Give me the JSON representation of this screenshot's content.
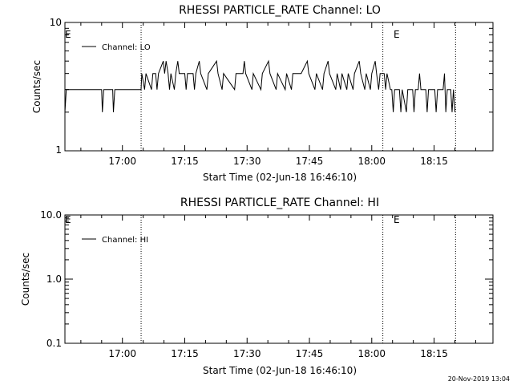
{
  "footer": {
    "timestamp": "20-Nov-2019 13:04"
  },
  "chart_data": [
    {
      "type": "line",
      "title": "RHESSI PARTICLE_RATE Channel: LO",
      "xlabel": "Start Time (02-Jun-18 16:46:10)",
      "ylabel": "Counts/sec",
      "yscale": "log",
      "ylim": [
        1,
        10
      ],
      "yticks": [
        1,
        10
      ],
      "ytick_labels": [
        "1",
        "10"
      ],
      "xlim": [
        "16:46:10",
        "18:29:10"
      ],
      "xticks": [
        "17:00",
        "17:15",
        "17:30",
        "17:45",
        "18:00",
        "18:15"
      ],
      "legend": {
        "label": "Channel: LO",
        "position": "top-left"
      },
      "event_lines": [
        {
          "x": "17:04:30",
          "label": ""
        },
        {
          "x": "18:02:40",
          "label": "E"
        },
        {
          "x": "18:20:10",
          "label": ""
        }
      ],
      "corner_label": "E",
      "series": [
        {
          "name": "Channel: LO",
          "points": [
            [
              "16:46:10",
              2
            ],
            [
              "16:46:30",
              3
            ],
            [
              "16:55:00",
              3
            ],
            [
              "16:55:10",
              2
            ],
            [
              "16:55:30",
              3
            ],
            [
              "16:57:40",
              3
            ],
            [
              "16:57:50",
              2
            ],
            [
              "16:58:10",
              3
            ],
            [
              "17:04:30",
              3
            ],
            [
              "17:04:40",
              4
            ],
            [
              "17:05:20",
              3
            ],
            [
              "17:05:40",
              4
            ],
            [
              "17:07:00",
              3
            ],
            [
              "17:07:20",
              4
            ],
            [
              "17:08:00",
              4
            ],
            [
              "17:08:20",
              3
            ],
            [
              "17:08:40",
              4
            ],
            [
              "17:09:50",
              5
            ],
            [
              "17:10:10",
              4
            ],
            [
              "17:10:30",
              5
            ],
            [
              "17:11:00",
              4
            ],
            [
              "17:11:20",
              3
            ],
            [
              "17:11:40",
              4
            ],
            [
              "17:12:30",
              3
            ],
            [
              "17:12:50",
              4
            ],
            [
              "17:13:20",
              5
            ],
            [
              "17:13:40",
              4
            ],
            [
              "17:15:00",
              4
            ],
            [
              "17:15:20",
              3
            ],
            [
              "17:15:40",
              4
            ],
            [
              "17:17:00",
              4
            ],
            [
              "17:17:20",
              3
            ],
            [
              "17:17:40",
              4
            ],
            [
              "17:18:30",
              5
            ],
            [
              "17:18:50",
              4
            ],
            [
              "17:20:20",
              3
            ],
            [
              "17:20:40",
              4
            ],
            [
              "17:22:40",
              5
            ],
            [
              "17:23:00",
              4
            ],
            [
              "17:24:00",
              3
            ],
            [
              "17:24:20",
              4
            ],
            [
              "17:27:00",
              3
            ],
            [
              "17:27:20",
              4
            ],
            [
              "17:29:00",
              4
            ],
            [
              "17:29:20",
              5
            ],
            [
              "17:29:40",
              4
            ],
            [
              "17:31:10",
              3
            ],
            [
              "17:31:30",
              4
            ],
            [
              "17:33:20",
              3
            ],
            [
              "17:33:40",
              4
            ],
            [
              "17:35:10",
              5
            ],
            [
              "17:35:30",
              4
            ],
            [
              "17:37:00",
              3
            ],
            [
              "17:37:20",
              4
            ],
            [
              "17:39:10",
              3
            ],
            [
              "17:39:30",
              4
            ],
            [
              "17:40:40",
              3
            ],
            [
              "17:41:00",
              4
            ],
            [
              "17:43:00",
              4
            ],
            [
              "17:44:30",
              5
            ],
            [
              "17:44:50",
              4
            ],
            [
              "17:46:20",
              3
            ],
            [
              "17:46:40",
              4
            ],
            [
              "17:48:10",
              3
            ],
            [
              "17:48:30",
              4
            ],
            [
              "17:49:30",
              5
            ],
            [
              "17:49:50",
              4
            ],
            [
              "17:51:20",
              3
            ],
            [
              "17:51:40",
              4
            ],
            [
              "17:52:30",
              3
            ],
            [
              "17:52:50",
              4
            ],
            [
              "17:54:00",
              3
            ],
            [
              "17:54:20",
              4
            ],
            [
              "17:55:30",
              3
            ],
            [
              "17:55:50",
              4
            ],
            [
              "17:57:00",
              5
            ],
            [
              "17:57:20",
              4
            ],
            [
              "17:58:20",
              3
            ],
            [
              "17:58:40",
              4
            ],
            [
              "17:59:40",
              3
            ],
            [
              "18:00:00",
              4
            ],
            [
              "18:00:50",
              5
            ],
            [
              "18:01:10",
              4
            ],
            [
              "18:01:40",
              3
            ],
            [
              "18:02:00",
              4
            ],
            [
              "18:03:00",
              4
            ],
            [
              "18:03:20",
              3
            ],
            [
              "18:03:40",
              4
            ],
            [
              "18:04:30",
              3
            ],
            [
              "18:04:50",
              3
            ],
            [
              "18:05:10",
              2
            ],
            [
              "18:05:30",
              3
            ],
            [
              "18:06:40",
              3
            ],
            [
              "18:07:00",
              2
            ],
            [
              "18:07:20",
              3
            ],
            [
              "18:08:20",
              2
            ],
            [
              "18:08:40",
              3
            ],
            [
              "18:09:50",
              3
            ],
            [
              "18:10:10",
              2
            ],
            [
              "18:10:30",
              3
            ],
            [
              "18:11:10",
              3
            ],
            [
              "18:11:30",
              4
            ],
            [
              "18:11:50",
              3
            ],
            [
              "18:13:00",
              3
            ],
            [
              "18:13:20",
              2
            ],
            [
              "18:13:40",
              3
            ],
            [
              "18:15:10",
              3
            ],
            [
              "18:15:30",
              2
            ],
            [
              "18:15:50",
              3
            ],
            [
              "18:17:10",
              3
            ],
            [
              "18:17:30",
              4
            ],
            [
              "18:17:50",
              2
            ],
            [
              "18:18:10",
              3
            ],
            [
              "18:19:00",
              3
            ],
            [
              "18:19:20",
              2
            ],
            [
              "18:19:40",
              3
            ],
            [
              "18:20:00",
              2
            ]
          ]
        }
      ]
    },
    {
      "type": "line",
      "title": "RHESSI PARTICLE_RATE Channel: HI",
      "xlabel": "Start Time (02-Jun-18 16:46:10)",
      "ylabel": "Counts/sec",
      "yscale": "log",
      "ylim": [
        0.1,
        10
      ],
      "yticks": [
        0.1,
        1,
        10
      ],
      "ytick_labels": [
        "0.1",
        "1.0",
        "10.0"
      ],
      "xlim": [
        "16:46:10",
        "18:29:10"
      ],
      "xticks": [
        "17:00",
        "17:15",
        "17:30",
        "17:45",
        "18:00",
        "18:15"
      ],
      "legend": {
        "label": "Channel: HI",
        "position": "top-left"
      },
      "event_lines": [
        {
          "x": "17:04:30",
          "label": ""
        },
        {
          "x": "18:02:40",
          "label": "E"
        },
        {
          "x": "18:20:10",
          "label": ""
        }
      ],
      "corner_label": "E",
      "series": [
        {
          "name": "Channel: HI",
          "points": []
        }
      ]
    }
  ]
}
